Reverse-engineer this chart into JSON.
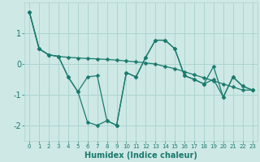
{
  "xlabel": "Humidex (Indice chaleur)",
  "x": [
    0,
    1,
    2,
    3,
    4,
    5,
    6,
    7,
    8,
    9,
    10,
    11,
    12,
    13,
    14,
    15,
    16,
    17,
    18,
    19,
    20,
    21,
    22,
    23
  ],
  "line1": [
    1.7,
    0.5,
    0.3,
    0.25,
    0.22,
    0.2,
    0.18,
    0.17,
    0.15,
    0.13,
    0.1,
    0.07,
    0.04,
    0.0,
    -0.08,
    -0.15,
    -0.25,
    -0.35,
    -0.45,
    -0.55,
    -0.65,
    -0.75,
    -0.85,
    -0.85
  ],
  "line2": [
    1.7,
    0.5,
    0.3,
    0.25,
    -0.42,
    -0.9,
    -1.9,
    -2.0,
    -1.85,
    -2.0,
    -0.28,
    -0.42,
    0.22,
    0.78,
    0.78,
    0.5,
    -0.38,
    -0.5,
    -0.65,
    -0.5,
    -1.08,
    -0.42,
    -0.72,
    -0.85
  ],
  "line3": [
    1.7,
    0.5,
    0.3,
    0.25,
    -0.42,
    -0.9,
    -0.42,
    -0.38,
    -1.85,
    -2.0,
    -0.28,
    -0.42,
    0.22,
    0.78,
    0.78,
    0.5,
    -0.38,
    -0.5,
    -0.65,
    -0.08,
    -1.08,
    -0.42,
    -0.72,
    -0.85
  ],
  "color": "#1a7a6e",
  "bg_color": "#cde8e5",
  "grid_color": "#aed4d0",
  "ylim": [
    -2.5,
    2.0
  ],
  "yticks": [
    -2,
    -1,
    0,
    1
  ],
  "marker": "D",
  "markersize": 2.5
}
